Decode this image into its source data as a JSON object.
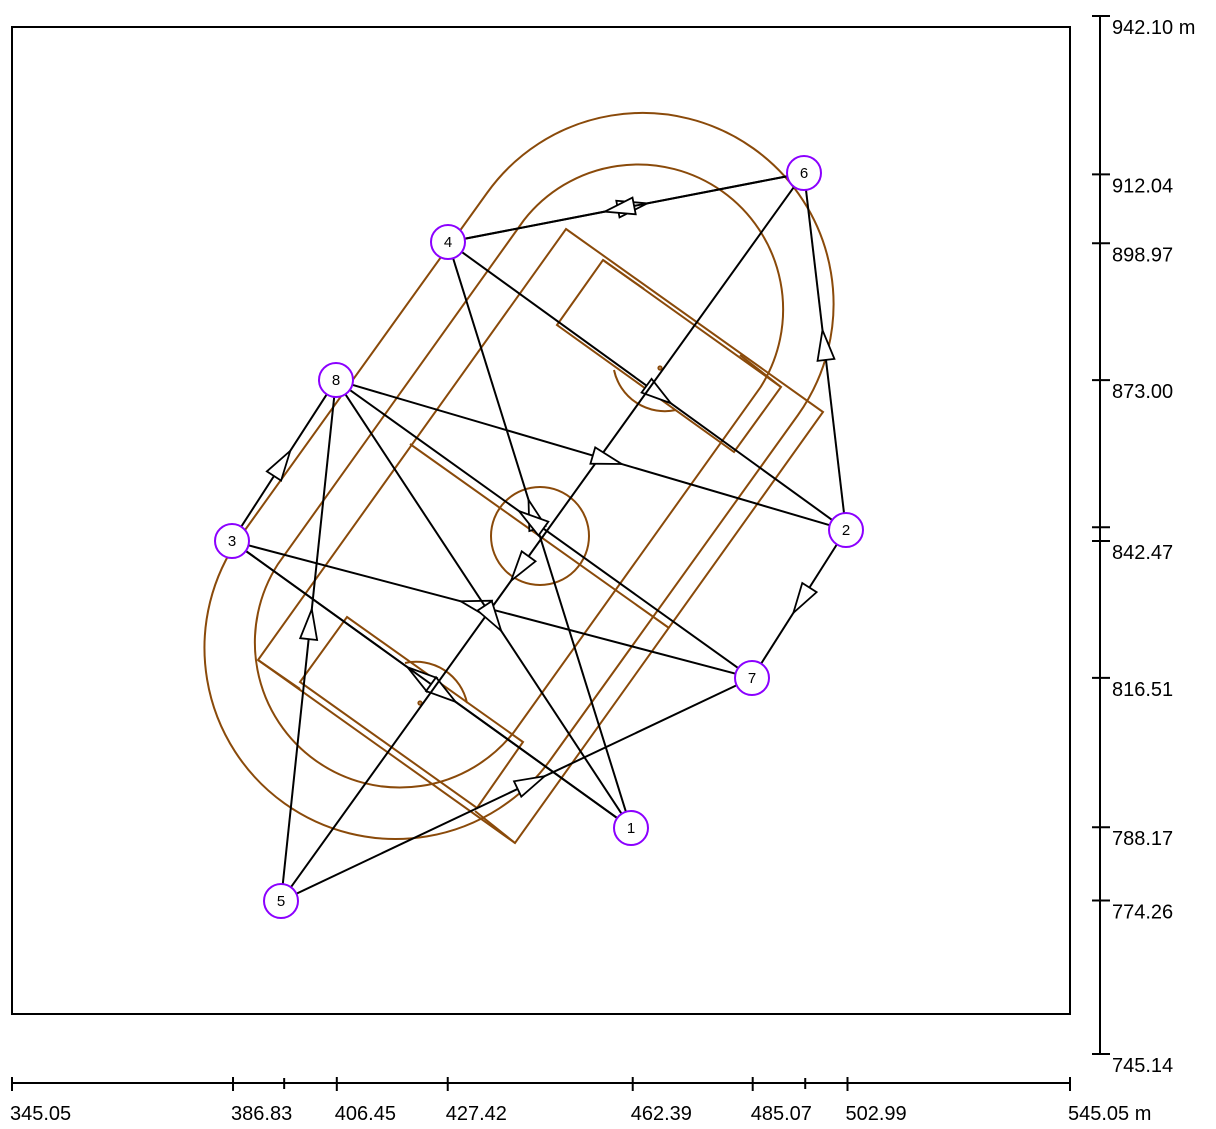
{
  "colors": {
    "field": "#8a4a0a",
    "node": "#8b00ff",
    "arrow": "#000000",
    "frame": "#000000"
  },
  "x_axis": {
    "ticks": [
      {
        "value": 345.05,
        "label": "345.05"
      },
      {
        "value": 386.83,
        "label": "386.83"
      },
      {
        "value": 396.5,
        "label": ""
      },
      {
        "value": 406.45,
        "label": "406.45"
      },
      {
        "value": 427.42,
        "label": "427.42"
      },
      {
        "value": 462.39,
        "label": "462.39"
      },
      {
        "value": 485.07,
        "label": "485.07"
      },
      {
        "value": 495.0,
        "label": ""
      },
      {
        "value": 502.99,
        "label": "502.99"
      },
      {
        "value": 545.05,
        "label": "545.05 m"
      }
    ]
  },
  "y_axis": {
    "ticks": [
      {
        "value": 942.1,
        "label": "942.10 m"
      },
      {
        "value": 912.04,
        "label": "912.04"
      },
      {
        "value": 898.97,
        "label": "898.97"
      },
      {
        "value": 873.0,
        "label": "873.00"
      },
      {
        "value": 845.1,
        "label": ""
      },
      {
        "value": 842.47,
        "label": "842.47"
      },
      {
        "value": 816.51,
        "label": "816.51"
      },
      {
        "value": 788.17,
        "label": "788.17"
      },
      {
        "value": 774.26,
        "label": "774.26"
      },
      {
        "value": 745.14,
        "label": "745.14"
      }
    ]
  },
  "nodes": [
    {
      "id": "1",
      "label": "1"
    },
    {
      "id": "2",
      "label": "2"
    },
    {
      "id": "3",
      "label": "3"
    },
    {
      "id": "4",
      "label": "4"
    },
    {
      "id": "5",
      "label": "5"
    },
    {
      "id": "6",
      "label": "6"
    },
    {
      "id": "7",
      "label": "7"
    },
    {
      "id": "8",
      "label": "8"
    }
  ],
  "links": [
    {
      "from": "1",
      "to": "3"
    },
    {
      "from": "1",
      "to": "4"
    },
    {
      "from": "2",
      "to": "6"
    },
    {
      "from": "2",
      "to": "7"
    },
    {
      "from": "3",
      "to": "8"
    },
    {
      "from": "3",
      "to": "1"
    },
    {
      "from": "4",
      "to": "6"
    },
    {
      "from": "4",
      "to": "2"
    },
    {
      "from": "5",
      "to": "8"
    },
    {
      "from": "5",
      "to": "7"
    },
    {
      "from": "6",
      "to": "4"
    },
    {
      "from": "6",
      "to": "5"
    },
    {
      "from": "7",
      "to": "3"
    },
    {
      "from": "7",
      "to": "8"
    },
    {
      "from": "8",
      "to": "1"
    },
    {
      "from": "8",
      "to": "2"
    }
  ]
}
